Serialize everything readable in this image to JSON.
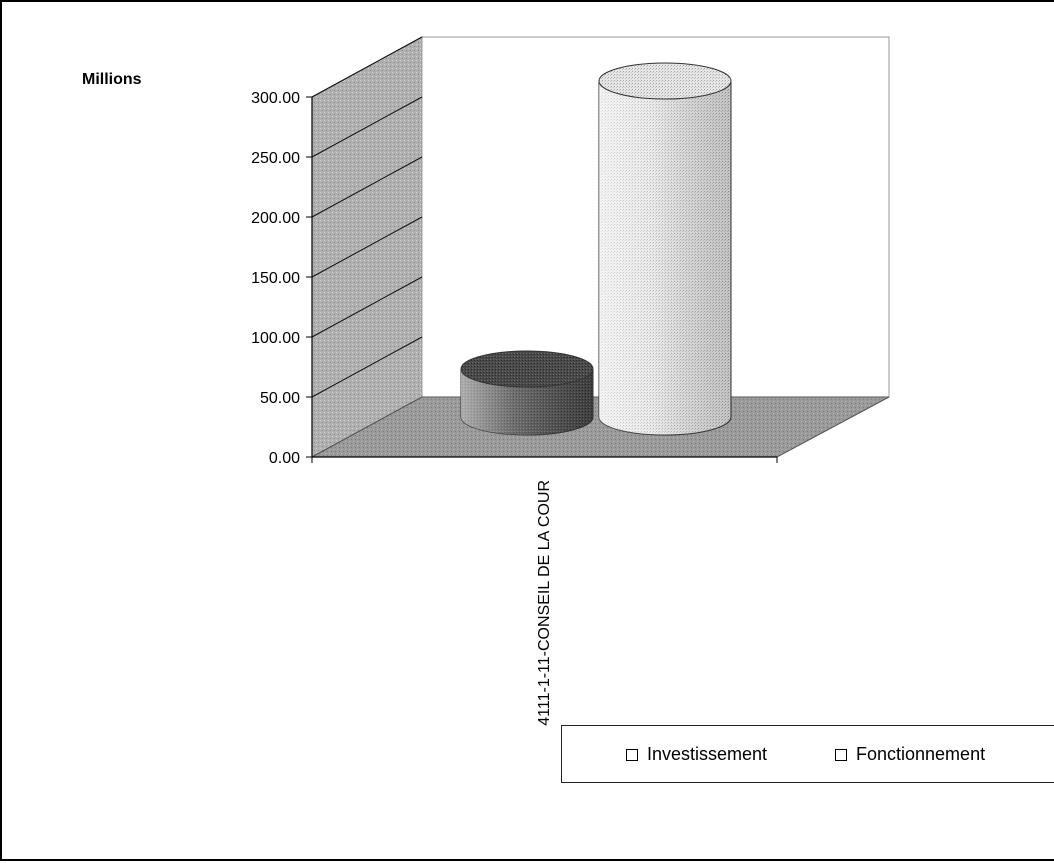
{
  "chart_data": {
    "type": "bar",
    "style": "3d-cylinder",
    "unit_label": "Millions",
    "categories": [
      "4111-1-11-CONSEIL DE LA COUR"
    ],
    "series": [
      {
        "name": "Investissement",
        "values": [
          40
        ],
        "color": "#555555"
      },
      {
        "name": "Fonctionnement",
        "values": [
          280
        ],
        "color": "#d4d4d4"
      }
    ],
    "ylim": [
      0,
      300
    ],
    "yticks": [
      "0.00",
      "50.00",
      "100.00",
      "150.00",
      "200.00",
      "250.00",
      "300.00"
    ],
    "grid": true,
    "legend_position": "bottom-right"
  }
}
